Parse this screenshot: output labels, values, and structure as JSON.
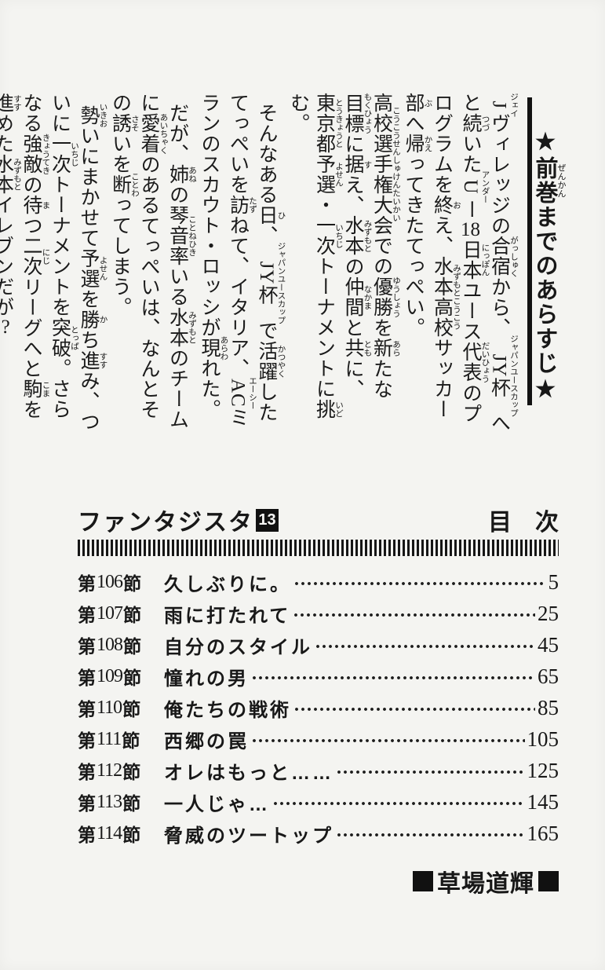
{
  "page": {
    "bg": "#f4f4f1",
    "ink": "#181818"
  },
  "synopsis": {
    "title_segments": [
      {
        "t": "★"
      },
      {
        "t": "前巻",
        "r": "ぜんかん"
      },
      {
        "t": "までのあらすじ"
      },
      {
        "t": "★"
      }
    ],
    "paragraphs": [
      {
        "indent": false,
        "segments": [
          {
            "t": "J",
            "r": "ジェイ"
          },
          {
            "t": "ヴィレッジの"
          },
          {
            "t": "合宿",
            "r": "がっしゅく"
          },
          {
            "t": "から、"
          },
          {
            "t": "JY杯",
            "r": "ジャパンユースカップ"
          },
          {
            "t": "へと"
          },
          {
            "t": "続",
            "r": "つづ"
          },
          {
            "t": "いた"
          },
          {
            "t": "U",
            "r": "アンダー"
          },
          {
            "t": "ー"
          },
          {
            "t": "18",
            "tcy": true
          },
          {
            "t": "日本",
            "r": "にっぽん"
          },
          {
            "t": "ユース"
          },
          {
            "t": "代表",
            "r": "だいひょう"
          },
          {
            "t": "のプログラムを"
          },
          {
            "t": "終",
            "r": "お"
          },
          {
            "t": "え、"
          },
          {
            "t": "水本高校",
            "r": "みずもとこうこう"
          },
          {
            "t": "サッカー"
          },
          {
            "t": "部",
            "r": "ぶ"
          },
          {
            "t": "へ"
          },
          {
            "t": "帰",
            "r": "かえ"
          },
          {
            "t": "ってきたてっぺい。"
          }
        ]
      },
      {
        "indent": false,
        "segments": [
          {
            "t": "高校選手権大会",
            "r": "こうこうせんしゅけんたいかい"
          },
          {
            "t": "での"
          },
          {
            "t": "優勝",
            "r": "ゆうしょう"
          },
          {
            "t": "を"
          },
          {
            "t": "新",
            "r": "あら"
          },
          {
            "t": "たな"
          },
          {
            "t": "目標",
            "r": "もくひょう"
          },
          {
            "t": "に"
          },
          {
            "t": "据",
            "r": "す"
          },
          {
            "t": "え、"
          },
          {
            "t": "水本",
            "r": "みずもと"
          },
          {
            "t": "の"
          },
          {
            "t": "仲間",
            "r": "なかま"
          },
          {
            "t": "と"
          },
          {
            "t": "共",
            "r": "とも"
          },
          {
            "t": "に、"
          },
          {
            "t": "東京都",
            "r": "とうきょうと"
          },
          {
            "t": "予選",
            "r": "よせん"
          },
          {
            "t": "・"
          },
          {
            "t": "一次",
            "r": "いちじ"
          },
          {
            "t": "トーナメントに"
          },
          {
            "t": "挑",
            "r": "いど"
          },
          {
            "t": "む。"
          }
        ]
      },
      {
        "indent": true,
        "segments": [
          {
            "t": "そんなある"
          },
          {
            "t": "日",
            "r": "ひ"
          },
          {
            "t": "、"
          },
          {
            "t": "JY杯",
            "r": "ジャパンユースカップ"
          },
          {
            "t": "で"
          },
          {
            "t": "活躍",
            "r": "かつやく"
          },
          {
            "t": "したてっぺいを"
          },
          {
            "t": "訪",
            "r": "たず"
          },
          {
            "t": "ねて、イタリア、"
          },
          {
            "t": "AC",
            "r": "エーシー"
          },
          {
            "t": "ミランのスカウト・ロッシが"
          },
          {
            "t": "現",
            "r": "あらわ"
          },
          {
            "t": "れた。"
          }
        ]
      },
      {
        "indent": true,
        "segments": [
          {
            "t": "だが、"
          },
          {
            "t": "姉",
            "r": "あね"
          },
          {
            "t": "の"
          },
          {
            "t": "琴音率",
            "r": "ことねひき"
          },
          {
            "t": "いる"
          },
          {
            "t": "水本",
            "r": "みずもと"
          },
          {
            "t": "のチームに"
          },
          {
            "t": "愛着",
            "r": "あいちゃく"
          },
          {
            "t": "のあるてっぺいは、なんとその"
          },
          {
            "t": "誘",
            "r": "さそ"
          },
          {
            "t": "いを"
          },
          {
            "t": "断",
            "r": "ことわ"
          },
          {
            "t": "ってしまう。"
          }
        ]
      },
      {
        "indent": true,
        "segments": [
          {
            "t": "勢",
            "r": "いきお"
          },
          {
            "t": "いにまかせて"
          },
          {
            "t": "予選",
            "r": "よせん"
          },
          {
            "t": "を"
          },
          {
            "t": "勝",
            "r": "か"
          },
          {
            "t": "ち"
          },
          {
            "t": "進",
            "r": "すす"
          },
          {
            "t": "み、ついに"
          },
          {
            "t": "一次",
            "r": "いちじ"
          },
          {
            "t": "トーナメントを"
          },
          {
            "t": "突破",
            "r": "とっぱ"
          },
          {
            "t": "。さらなる"
          },
          {
            "t": "強敵",
            "r": "きょうてき"
          },
          {
            "t": "の"
          },
          {
            "t": "待",
            "r": "ま"
          },
          {
            "t": "つ"
          },
          {
            "t": "二次",
            "r": "にじ"
          },
          {
            "t": "リーグへと"
          },
          {
            "t": "駒",
            "r": "こま"
          },
          {
            "t": "を"
          },
          {
            "t": "進",
            "r": "すす"
          },
          {
            "t": "めた"
          },
          {
            "t": "水本",
            "r": "みずもと"
          },
          {
            "t": "イレブンだが"
          },
          {
            "t": "!?",
            "tcy": true
          }
        ]
      }
    ]
  },
  "toc": {
    "series": "ファンタジスタ",
    "volume": "13",
    "label": "目　次",
    "rows": [
      {
        "prefix": "第",
        "num": "106",
        "suffix": "節",
        "title": "久しぶりに。",
        "page": "5"
      },
      {
        "prefix": "第",
        "num": "107",
        "suffix": "節",
        "title": "雨に打たれて",
        "page": "25"
      },
      {
        "prefix": "第",
        "num": "108",
        "suffix": "節",
        "title": "自分のスタイル",
        "page": "45"
      },
      {
        "prefix": "第",
        "num": "109",
        "suffix": "節",
        "title": "憧れの男",
        "page": "65"
      },
      {
        "prefix": "第",
        "num": "110",
        "suffix": "節",
        "title": "俺たちの戦術",
        "page": "85"
      },
      {
        "prefix": "第",
        "num": "111",
        "suffix": "節",
        "title": "西郷の罠",
        "page": "105"
      },
      {
        "prefix": "第",
        "num": "112",
        "suffix": "節",
        "title": "オレはもっと……",
        "page": "125"
      },
      {
        "prefix": "第",
        "num": "113",
        "suffix": "節",
        "title": "一人じゃ…",
        "page": "145"
      },
      {
        "prefix": "第",
        "num": "114",
        "suffix": "節",
        "title": "脅威のツートップ",
        "page": "165"
      }
    ]
  },
  "author": {
    "name": "草場道輝"
  }
}
